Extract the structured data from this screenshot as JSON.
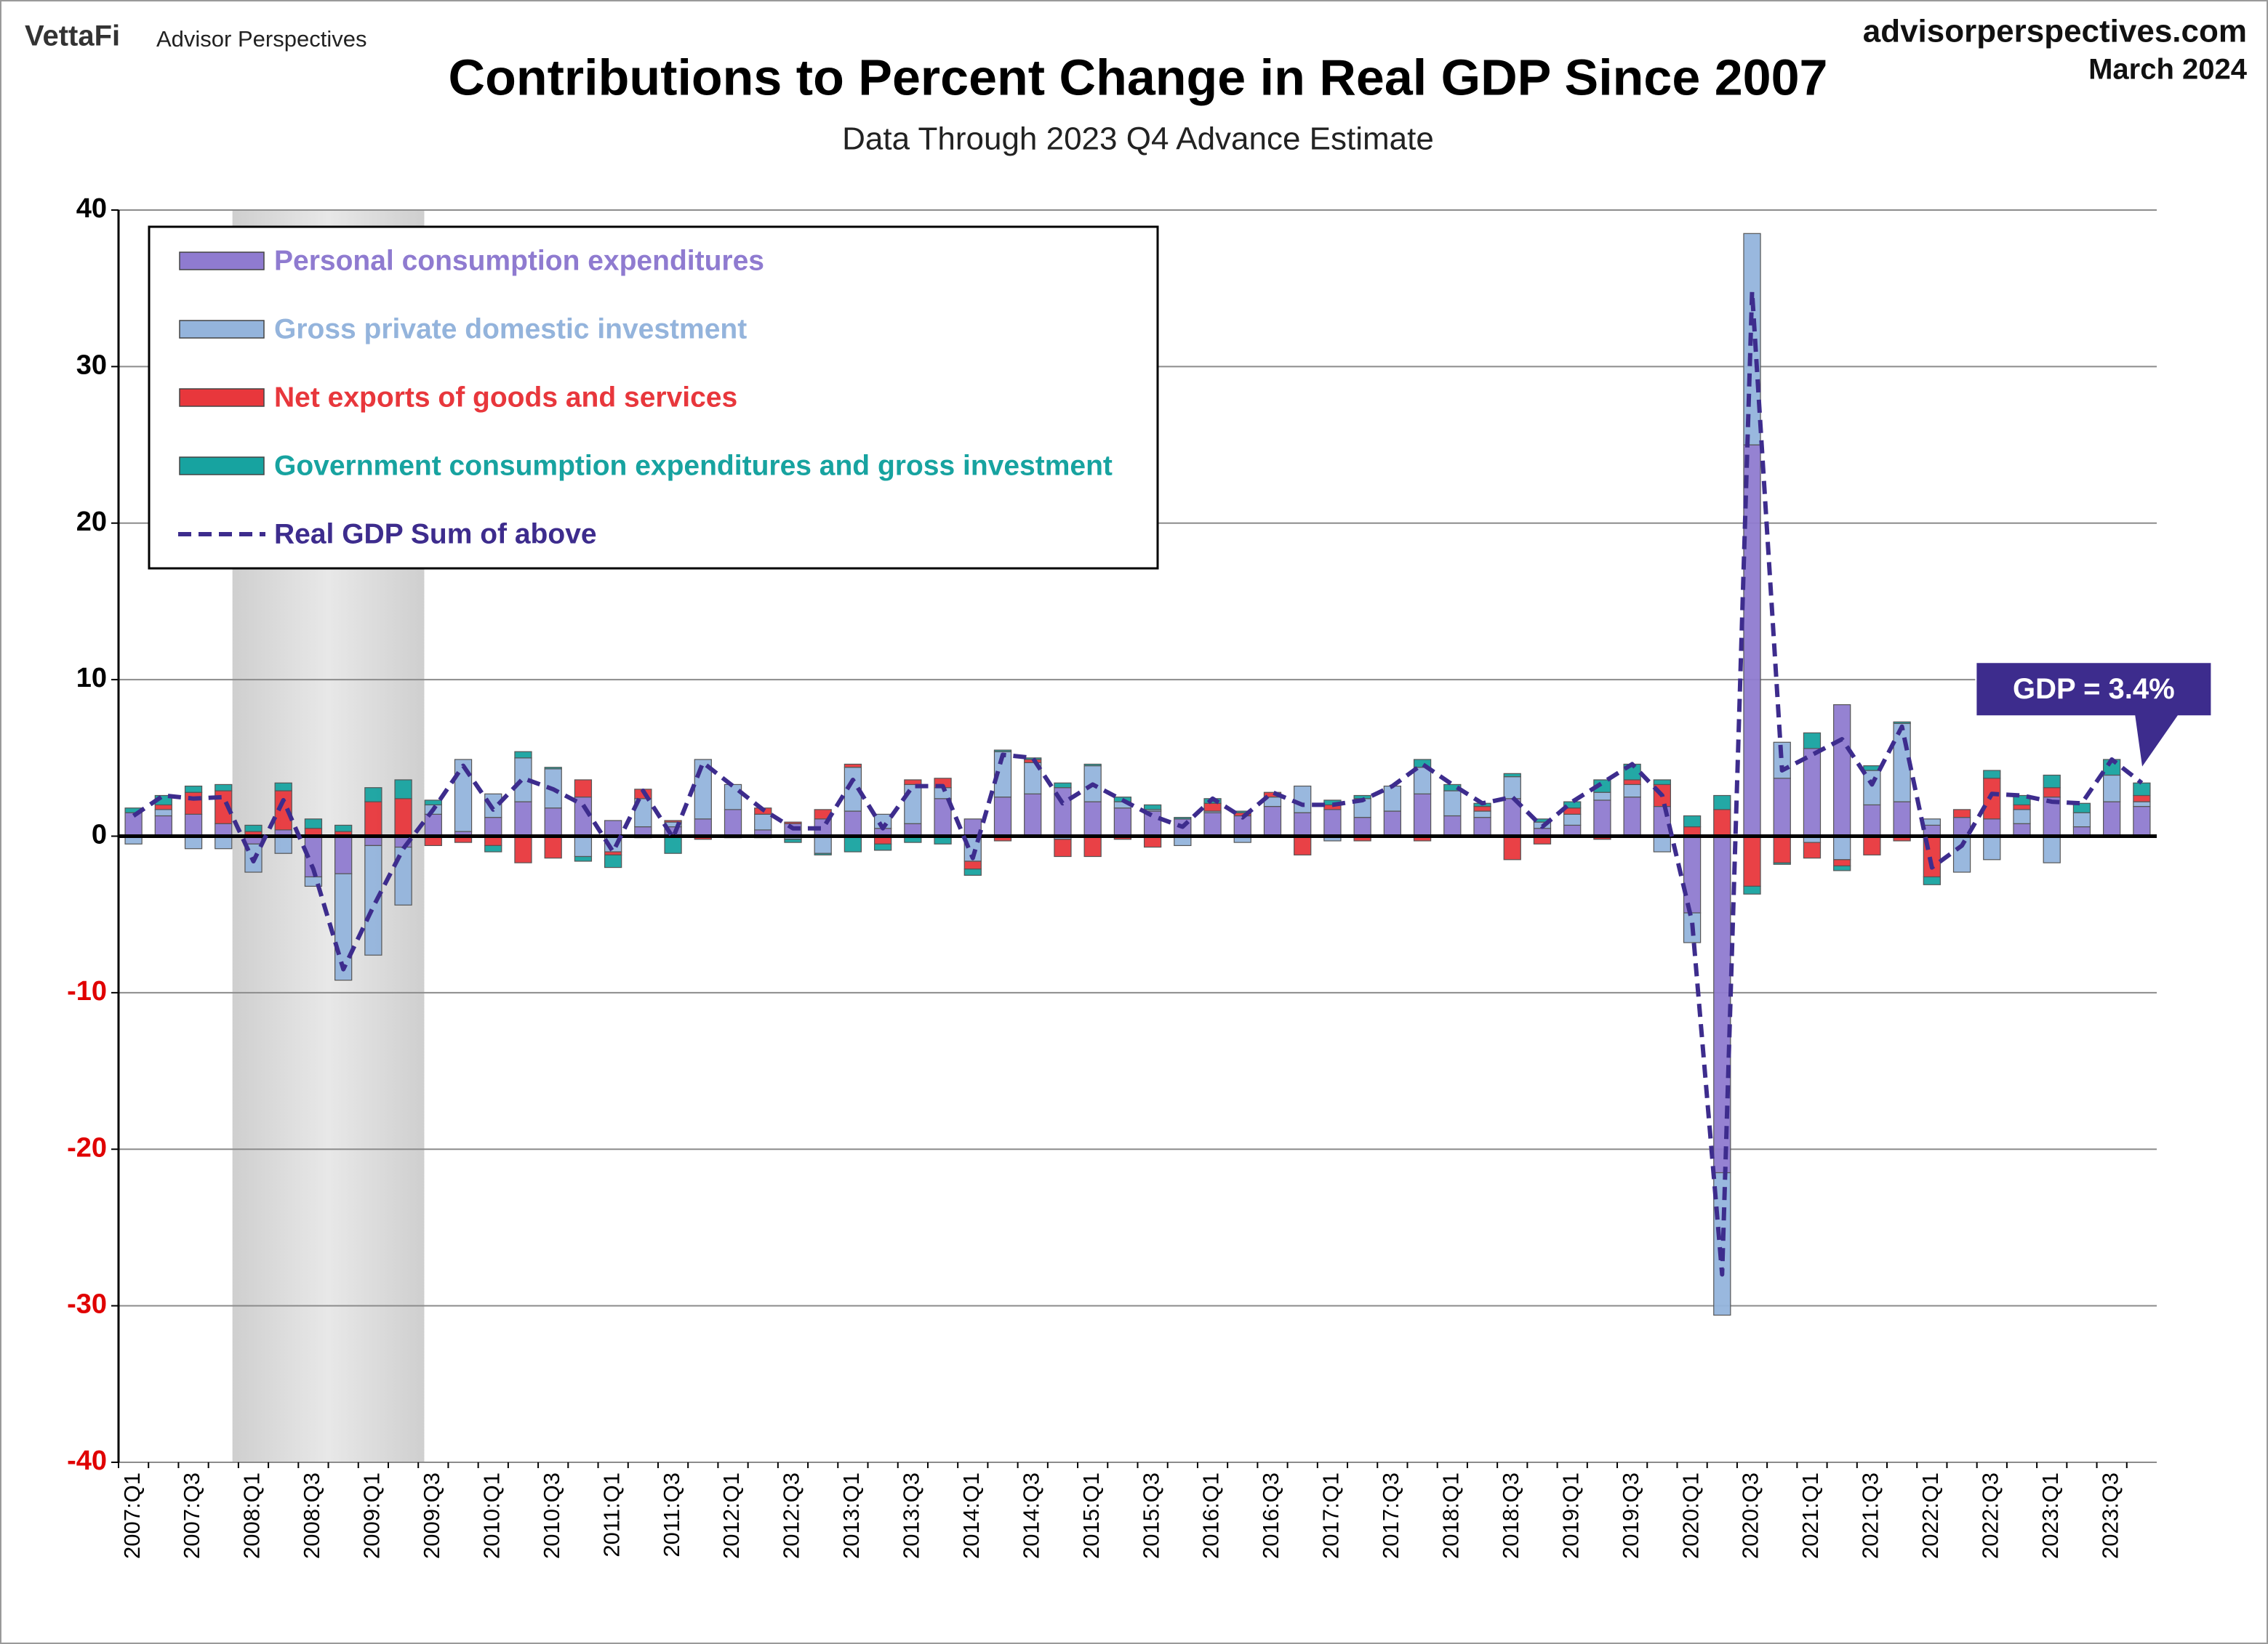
{
  "header": {
    "brand": "VettaFi",
    "brand_sub": "Advisor Perspectives",
    "site": "advisorperspectives.com",
    "date": "March 2024"
  },
  "chart_data": {
    "type": "stacked_bar",
    "title": "Contributions to Percent Change in Real GDP Since 2007",
    "subtitle": "Data Through 2023 Q4 Advance Estimate",
    "categories": [
      "2007:Q1",
      null,
      "2007:Q3",
      null,
      "2008:Q1",
      null,
      "2008:Q3",
      null,
      "2009:Q1",
      null,
      "2009:Q3",
      null,
      "2010:Q1",
      null,
      "2010:Q3",
      null,
      "2011:Q1",
      null,
      "2011:Q3",
      null,
      "2012:Q1",
      null,
      "2012:Q3",
      null,
      "2013:Q1",
      null,
      "2013:Q3",
      null,
      "2014:Q1",
      null,
      "2014:Q3",
      null,
      "2015:Q1",
      null,
      "2015:Q3",
      null,
      "2016:Q1",
      null,
      "2016:Q3",
      null,
      "2017:Q1",
      null,
      "2017:Q3",
      null,
      "2018:Q1",
      null,
      "2018:Q3",
      null,
      "2019:Q1",
      null,
      "2019:Q3",
      null,
      "2020:Q1",
      null,
      "2020:Q3",
      null,
      "2021:Q1",
      null,
      "2021:Q3",
      null,
      "2022:Q1",
      null,
      "2022:Q3",
      null,
      "2023:Q1",
      null,
      "2023:Q3",
      null
    ],
    "series": [
      {
        "name": "Personal consumption expenditures",
        "kind": "bar",
        "color": "#8f7bd0",
        "values": [
          1.5,
          1.3,
          1.4,
          0.8,
          -0.5,
          0.4,
          -2.6,
          -2.4,
          -0.6,
          -0.7,
          1.4,
          0.3,
          1.2,
          2.2,
          1.8,
          2.5,
          1.0,
          0.6,
          0.6,
          1.1,
          1.7,
          0.4,
          0.8,
          1.1,
          1.6,
          0.5,
          0.8,
          2.4,
          1.1,
          2.5,
          2.7,
          3.1,
          2.2,
          1.8,
          1.6,
          1.1,
          1.5,
          1.3,
          1.9,
          1.5,
          1.7,
          1.2,
          1.6,
          2.7,
          1.3,
          1.2,
          2.4,
          0.5,
          0.7,
          2.3,
          2.5,
          1.9,
          -4.9,
          -21.5,
          25.0,
          3.7,
          5.6,
          8.4,
          2.0,
          2.2,
          0.7,
          1.2,
          1.1,
          0.8,
          2.5,
          0.6,
          2.2,
          1.9
        ]
      },
      {
        "name": "Gross private domestic investment",
        "kind": "bar",
        "color": "#94b4dc",
        "values": [
          -0.5,
          0.4,
          -0.8,
          -0.8,
          -1.8,
          -1.1,
          -0.6,
          -6.8,
          -7.0,
          -3.7,
          0.6,
          4.6,
          1.5,
          2.8,
          2.5,
          -1.3,
          -1.0,
          1.8,
          0.3,
          3.8,
          1.6,
          1.0,
          -0.2,
          -1.1,
          2.8,
          0.9,
          2.5,
          0.7,
          -1.6,
          2.9,
          2.0,
          -0.2,
          2.3,
          0.4,
          0.1,
          -0.6,
          0.1,
          -0.4,
          0.6,
          1.7,
          -0.3,
          1.2,
          1.6,
          1.7,
          1.6,
          0.4,
          1.4,
          0.4,
          0.7,
          0.5,
          0.8,
          -1.0,
          -1.9,
          -9.1,
          13.5,
          2.3,
          -0.4,
          -1.5,
          2.2,
          5.0,
          0.4,
          -2.3,
          -1.5,
          0.9,
          -1.7,
          0.9,
          1.7,
          0.3
        ]
      },
      {
        "name": "Net exports of goods and services",
        "kind": "bar",
        "color": "#e8373c",
        "values": [
          0.0,
          0.3,
          1.4,
          2.1,
          0.3,
          2.5,
          0.5,
          0.3,
          2.2,
          2.4,
          -0.6,
          -0.4,
          -0.6,
          -1.7,
          -1.4,
          1.1,
          -0.2,
          0.6,
          0.1,
          -0.2,
          -0.1,
          0.4,
          0.1,
          0.6,
          0.2,
          -0.5,
          0.3,
          0.6,
          -0.5,
          -0.3,
          0.2,
          -1.1,
          -1.3,
          -0.2,
          -0.7,
          0.0,
          0.5,
          0.2,
          0.3,
          -1.2,
          0.3,
          -0.3,
          0.0,
          -0.3,
          0.0,
          0.3,
          -1.5,
          -0.5,
          0.4,
          -0.2,
          0.3,
          1.4,
          0.6,
          1.7,
          -3.2,
          -1.7,
          -1.0,
          -0.4,
          -1.2,
          -0.3,
          -2.6,
          0.5,
          2.6,
          0.3,
          0.6,
          0.0,
          0.0,
          0.4
        ]
      },
      {
        "name": "Government consumption expenditures and gross investment",
        "kind": "bar",
        "color": "#17a3a0",
        "values": [
          0.3,
          0.6,
          0.4,
          0.4,
          0.4,
          0.5,
          0.6,
          0.4,
          0.9,
          1.2,
          0.3,
          0.0,
          -0.4,
          0.4,
          0.1,
          -0.3,
          -0.8,
          -0.1,
          -1.1,
          0.0,
          0.0,
          -0.1,
          -0.2,
          -0.1,
          -1.0,
          -0.4,
          -0.4,
          -0.5,
          -0.4,
          0.1,
          0.1,
          0.3,
          0.1,
          0.3,
          0.3,
          0.1,
          0.3,
          0.1,
          0.0,
          0.0,
          0.3,
          0.2,
          0.0,
          0.5,
          0.4,
          0.2,
          0.2,
          0.2,
          0.4,
          0.8,
          1.0,
          0.3,
          0.7,
          0.9,
          -0.5,
          -0.1,
          1.0,
          -0.3,
          0.3,
          0.1,
          -0.5,
          0.0,
          0.5,
          0.6,
          0.8,
          0.6,
          1.0,
          0.8
        ]
      },
      {
        "name": "Real GDP Sum of above",
        "kind": "line",
        "color": "#3d2c8d",
        "values": [
          1.3,
          2.6,
          2.4,
          2.5,
          -1.6,
          2.3,
          -2.1,
          -8.5,
          -4.5,
          -0.8,
          1.7,
          4.5,
          1.7,
          3.7,
          3.0,
          2.0,
          -1.0,
          2.9,
          -0.1,
          4.7,
          3.2,
          1.7,
          0.5,
          0.5,
          3.6,
          0.5,
          3.2,
          3.2,
          -1.4,
          5.2,
          5.0,
          2.1,
          3.3,
          2.3,
          1.3,
          0.6,
          2.4,
          1.2,
          2.8,
          2.0,
          2.0,
          2.3,
          3.2,
          4.6,
          3.3,
          2.1,
          2.5,
          0.6,
          2.2,
          3.4,
          4.6,
          2.6,
          -5.5,
          -28.0,
          34.8,
          4.2,
          5.2,
          6.2,
          3.3,
          7.0,
          -2.0,
          -0.6,
          2.7,
          2.6,
          2.2,
          2.1,
          4.9,
          3.4
        ]
      }
    ],
    "ylim": [
      -40,
      40
    ],
    "yticks": [
      -40,
      -30,
      -20,
      -10,
      0,
      10,
      20,
      30,
      40
    ],
    "grid": true,
    "negative_tick_color": "#e00000",
    "legend": "upper left",
    "annotations": [
      {
        "text": "GDP = 3.4%",
        "color": "#3d2c8d"
      }
    ]
  }
}
